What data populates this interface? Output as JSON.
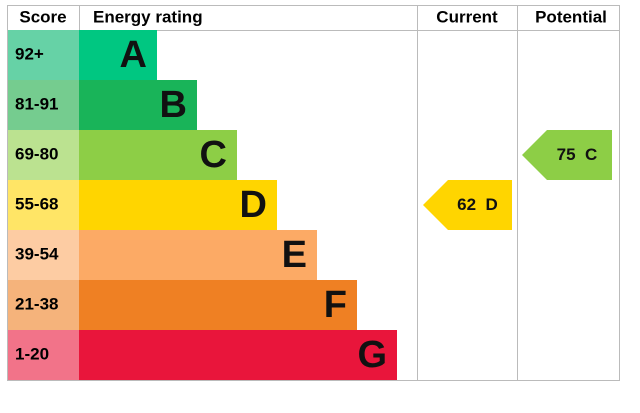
{
  "header": {
    "score": "Score",
    "rating": "Energy rating",
    "current": "Current",
    "potential": "Potential"
  },
  "bands": [
    {
      "score": "92+",
      "letter": "A",
      "color": "#00c781",
      "score_color": "#66d2a6"
    },
    {
      "score": "81-91",
      "letter": "B",
      "color": "#19b459",
      "score_color": "#75cc8f"
    },
    {
      "score": "69-80",
      "letter": "C",
      "color": "#8dce46",
      "score_color": "#bbe290"
    },
    {
      "score": "55-68",
      "letter": "D",
      "color": "#ffd500",
      "score_color": "#ffe566"
    },
    {
      "score": "39-54",
      "letter": "E",
      "color": "#fcaa65",
      "score_color": "#fdcca3"
    },
    {
      "score": "21-38",
      "letter": "F",
      "color": "#ef8023",
      "score_color": "#f5b37b"
    },
    {
      "score": "1-20",
      "letter": "G",
      "color": "#e9153b",
      "score_color": "#f27389"
    }
  ],
  "current": {
    "value": 62,
    "letter": "D"
  },
  "potential": {
    "value": 75,
    "letter": "C"
  }
}
